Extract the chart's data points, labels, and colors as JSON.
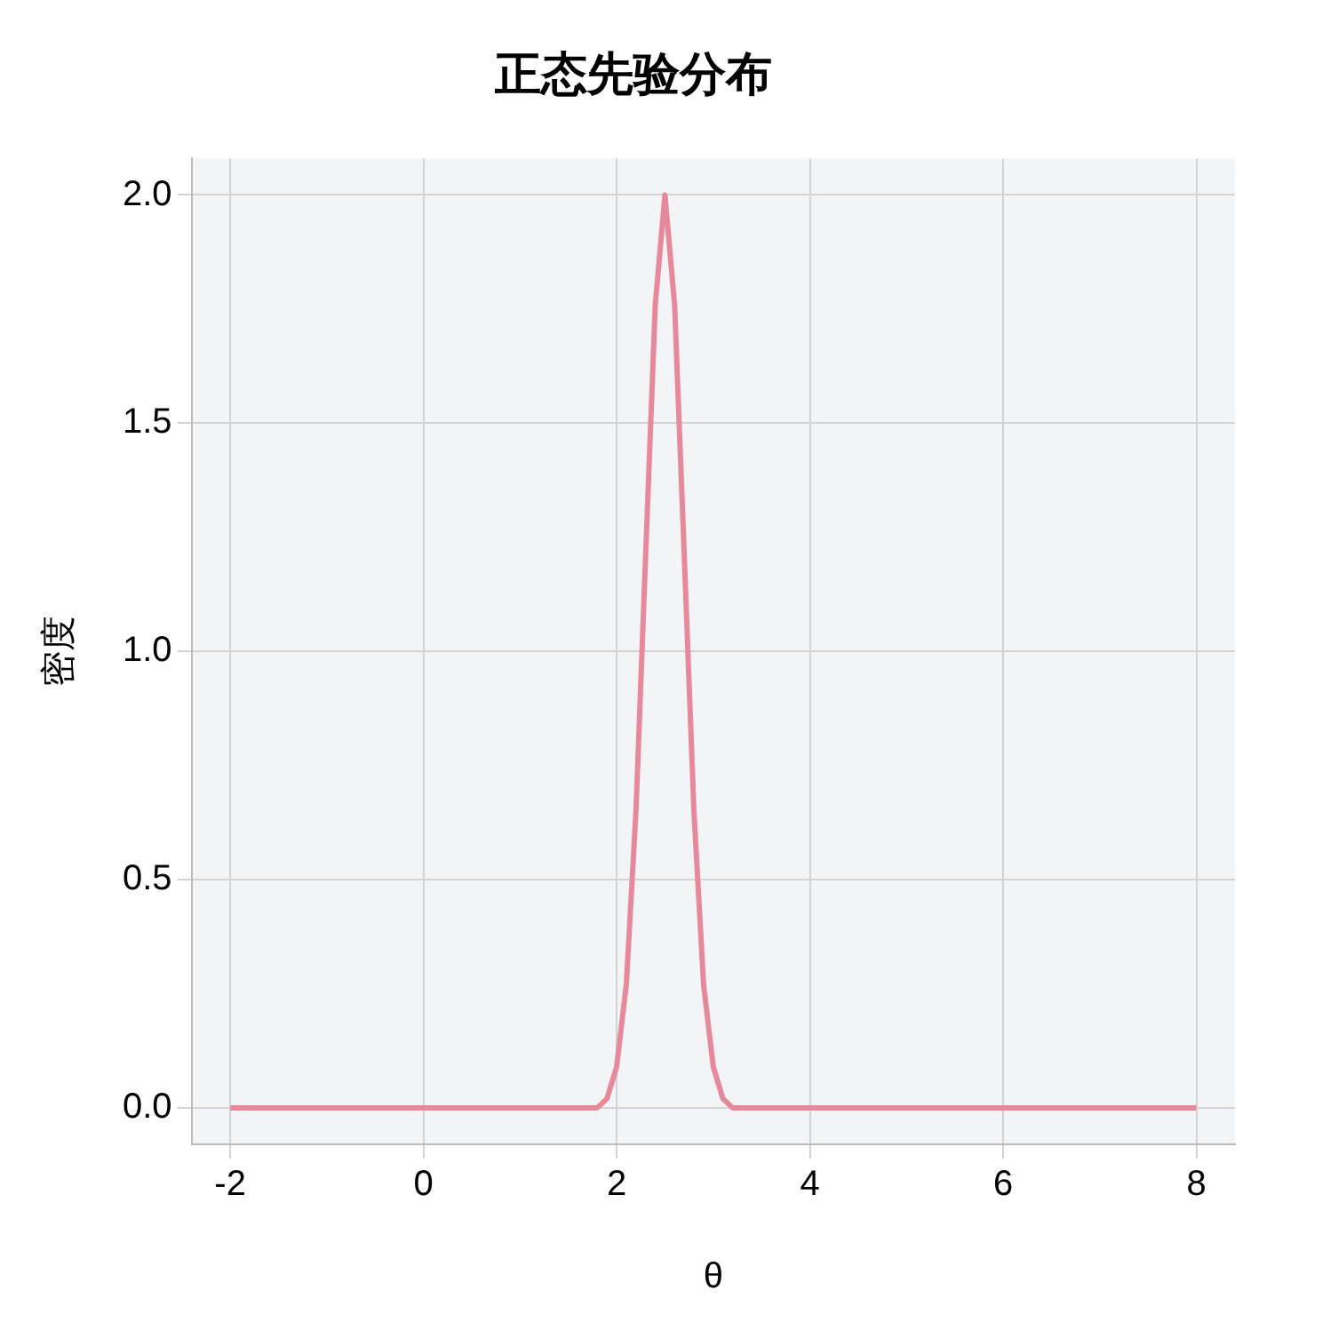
{
  "chart_data": {
    "type": "line",
    "title": "正态先验分布",
    "xlabel": "θ",
    "ylabel": "密度",
    "x": [
      -2,
      1.6,
      1.7,
      1.8,
      1.9,
      2.0,
      2.1,
      2.2,
      2.3,
      2.4,
      2.5,
      2.6,
      2.7,
      2.8,
      2.9,
      3.0,
      3.1,
      3.2,
      3.3,
      3.4,
      8
    ],
    "series": [
      {
        "color": "#e8899b",
        "values": [
          0,
          0,
          0,
          0,
          0.02,
          0.09,
          0.27,
          0.65,
          1.21,
          1.76,
          2.0,
          1.76,
          1.21,
          0.65,
          0.27,
          0.09,
          0.02,
          0,
          0,
          0,
          0
        ]
      }
    ],
    "xlim": [
      -2.4,
      8.4
    ],
    "xticks": [
      -2,
      0,
      2,
      4,
      6,
      8
    ],
    "ylim": [
      -0.08,
      2.08
    ],
    "yticks": [
      {
        "value": 0,
        "label": "0.0"
      },
      {
        "value": 0.5,
        "label": "0.5"
      },
      {
        "value": 1,
        "label": "1.0"
      },
      {
        "value": 1.5,
        "label": "1.5"
      },
      {
        "value": 2,
        "label": "2.0"
      }
    ],
    "grid": true,
    "legend": false,
    "marker": "none",
    "line_style": "solid"
  }
}
